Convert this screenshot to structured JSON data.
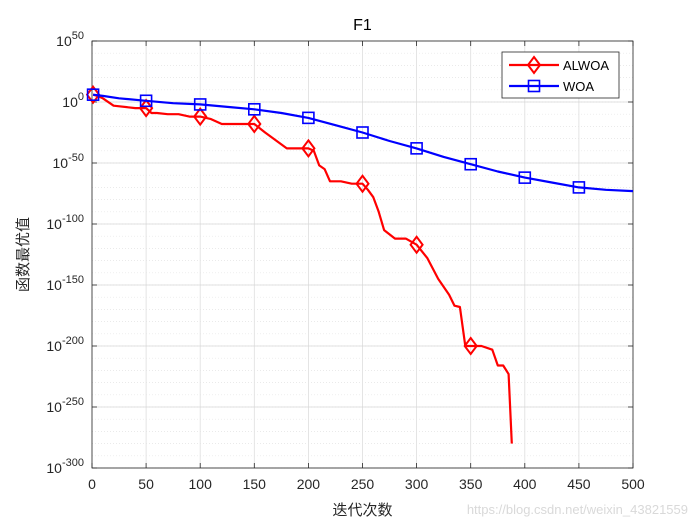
{
  "chart_data": {
    "type": "line",
    "title": "F1",
    "xlabel": "迭代次数",
    "ylabel": "函数最优值",
    "xlim": [
      0,
      500
    ],
    "ylim_log10": [
      -300,
      50
    ],
    "y_scale": "log",
    "grid": true,
    "legend_position": "top-right",
    "x_ticks": [
      "0",
      "50",
      "100",
      "150",
      "200",
      "250",
      "300",
      "350",
      "400",
      "450",
      "500"
    ],
    "y_ticks": [
      {
        "base": "10",
        "exp": "50"
      },
      {
        "base": "10",
        "exp": "0"
      },
      {
        "base": "10",
        "exp": "-50"
      },
      {
        "base": "10",
        "exp": "-100"
      },
      {
        "base": "10",
        "exp": "-150"
      },
      {
        "base": "10",
        "exp": "-200"
      },
      {
        "base": "10",
        "exp": "-250"
      },
      {
        "base": "10",
        "exp": "-300"
      }
    ],
    "series": [
      {
        "name": "ALWOA",
        "color": "#ff0000",
        "marker": "diamond",
        "x": [
          1,
          5,
          10,
          20,
          40,
          50,
          55,
          60,
          70,
          80,
          90,
          100,
          110,
          120,
          130,
          150,
          160,
          180,
          200,
          205,
          210,
          215,
          220,
          230,
          240,
          250,
          255,
          260,
          265,
          270,
          280,
          290,
          300,
          310,
          320,
          330,
          335,
          340,
          345,
          350,
          360,
          370,
          375,
          380,
          385,
          388
        ],
        "log10y": [
          6,
          5,
          3,
          -3,
          -5,
          -5,
          -9,
          -9,
          -10,
          -10,
          -12,
          -12,
          -14,
          -18,
          -18,
          -18,
          -25,
          -38,
          -38,
          -40,
          -52,
          -55,
          -65,
          -65,
          -67,
          -67,
          -72,
          -78,
          -90,
          -105,
          -112,
          -112,
          -117,
          -128,
          -145,
          -158,
          -167,
          -168,
          -200,
          -200,
          -200,
          -203,
          -216,
          -216,
          -223,
          -280
        ],
        "marker_x": [
          1,
          50,
          100,
          150,
          200,
          250,
          300,
          350
        ],
        "marker_log10y": [
          6,
          -5,
          -12,
          -18,
          -38,
          -67,
          -117,
          -200
        ]
      },
      {
        "name": "WOA",
        "color": "#0000ff",
        "marker": "square",
        "x": [
          1,
          10,
          25,
          50,
          75,
          100,
          125,
          150,
          175,
          200,
          225,
          250,
          275,
          300,
          325,
          350,
          375,
          400,
          425,
          450,
          475,
          500
        ],
        "log10y": [
          6,
          5,
          3,
          1,
          -1,
          -2,
          -4,
          -6,
          -9,
          -13,
          -19,
          -25,
          -32,
          -38,
          -45,
          -51,
          -57,
          -62,
          -66,
          -70,
          -72,
          -73
        ],
        "marker_x": [
          1,
          50,
          100,
          150,
          200,
          250,
          300,
          350,
          400,
          450
        ],
        "marker_log10y": [
          6,
          1,
          -2,
          -6,
          -13,
          -25,
          -38,
          -51,
          -62,
          -70
        ]
      }
    ]
  },
  "watermark": "https://blog.csdn.net/weixin_43821559"
}
